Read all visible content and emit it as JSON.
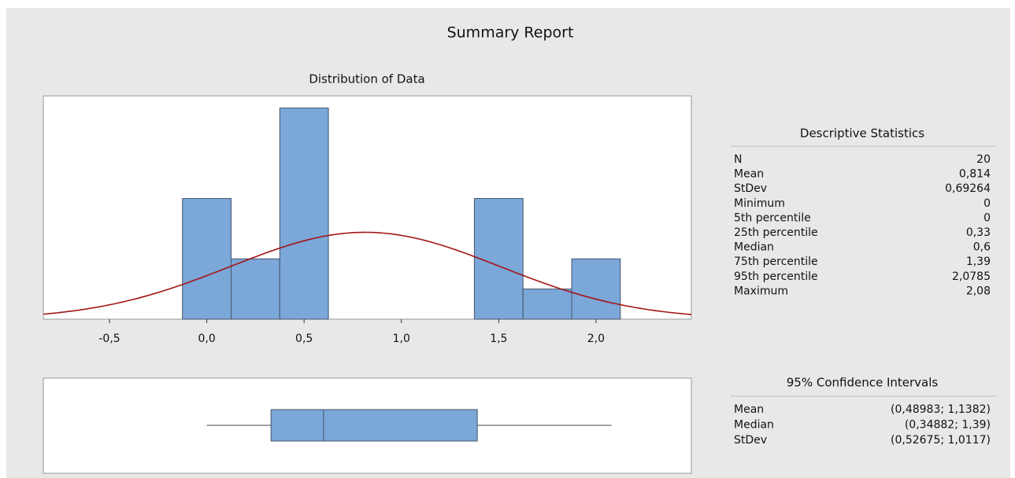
{
  "title": "Summary Report",
  "chart_data": [
    {
      "type": "histogram",
      "title": "Distribution of Data",
      "bins": [
        -0.125,
        0.125,
        0.375,
        0.625,
        0.875,
        1.125,
        1.375,
        1.625,
        1.875,
        2.125
      ],
      "counts": [
        4,
        2,
        7,
        0,
        0,
        0,
        4,
        1,
        2
      ],
      "color": "#7ba7d9",
      "edge_color": "#46546a",
      "normal_fit": {
        "mean": 0.814,
        "stdev": 0.69264,
        "n": 20,
        "color": "#a31515"
      },
      "xlim": [
        -0.84,
        2.49
      ],
      "ylim": [
        0,
        7.4
      ],
      "xticks": [
        {
          "value": -0.5,
          "label": "-0,5"
        },
        {
          "value": 0,
          "label": "0,0"
        },
        {
          "value": 0.5,
          "label": "0,5"
        },
        {
          "value": 1,
          "label": "1,0"
        },
        {
          "value": 1.5,
          "label": "1,5"
        },
        {
          "value": 2,
          "label": "2,0"
        }
      ]
    },
    {
      "type": "boxplot",
      "min": 0,
      "q1": 0.33,
      "median": 0.6,
      "q3": 1.39,
      "max": 2.08,
      "color": "#7ba7d9",
      "xlim": [
        -0.84,
        2.49
      ]
    }
  ],
  "descriptive_statistics": {
    "title": "Descriptive Statistics",
    "rows": [
      [
        "N",
        "20"
      ],
      [
        "Mean",
        "0,814"
      ],
      [
        "StDev",
        "0,69264"
      ],
      [
        "Minimum",
        "0"
      ],
      [
        "5th percentile",
        "0"
      ],
      [
        "25th percentile",
        "0,33"
      ],
      [
        "Median",
        "0,6"
      ],
      [
        "75th percentile",
        "1,39"
      ],
      [
        "95th percentile",
        "2,0785"
      ],
      [
        "Maximum",
        "2,08"
      ]
    ]
  },
  "confidence_intervals": {
    "title": "95% Confidence Intervals",
    "rows": [
      [
        "Mean",
        "(0,48983; 1,1382)"
      ],
      [
        "Median",
        "(0,34882; 1,39)"
      ],
      [
        "StDev",
        "(0,52675; 1,0117)"
      ]
    ]
  }
}
